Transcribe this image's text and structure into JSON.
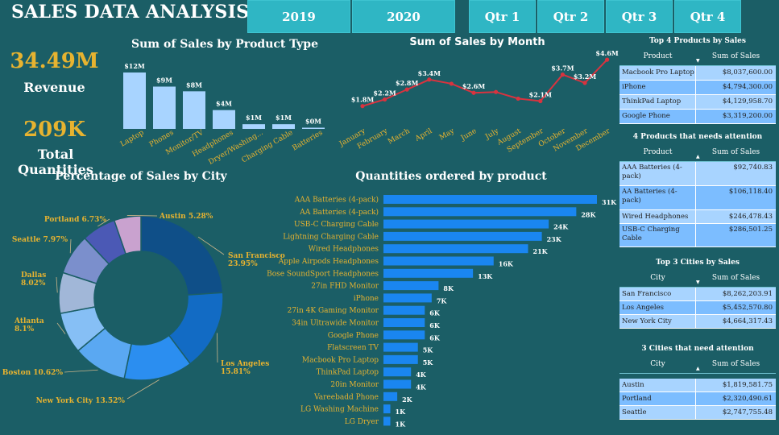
{
  "header": {
    "title": "SALES DATA ANALYSIS"
  },
  "slicers": [
    "2019",
    "2020",
    "Qtr 1",
    "Qtr 2",
    "Qtr 3",
    "Qtr 4"
  ],
  "kpis": {
    "revenue_value": "34.49M",
    "revenue_label": "Revenue",
    "quantity_value": "209K",
    "quantity_label": "Total Quantities"
  },
  "colors": {
    "background": "#1b5e66",
    "slicer": "#2fb6c4",
    "accent": "#e7b330",
    "bar_light": "#a8d4ff",
    "bar_blue": "#1a86f0",
    "line": "#d9333f"
  },
  "chart_data": [
    {
      "id": "product_type",
      "type": "bar",
      "title": "Sum of Sales by Product Type",
      "categories": [
        "Laptop",
        "Phones",
        "Monitor/TV",
        "Headphones",
        "Dryer/Washing...",
        "Charging Cable",
        "Batteries"
      ],
      "values": [
        12,
        9,
        8,
        4,
        1,
        1,
        0
      ],
      "value_labels": [
        "$12M",
        "$9M",
        "$8M",
        "$4M",
        "$1M",
        "$1M",
        "$0M"
      ],
      "ylim": [
        0,
        12
      ]
    },
    {
      "id": "sales_by_month",
      "type": "line",
      "title": "Sum of Sales by Month",
      "categories": [
        "January",
        "February",
        "March",
        "April",
        "May",
        "June",
        "July",
        "August",
        "September",
        "October",
        "November",
        "December"
      ],
      "values": [
        1.8,
        2.2,
        2.8,
        3.4,
        3.15,
        2.6,
        2.65,
        2.25,
        2.1,
        3.7,
        3.2,
        4.6
      ],
      "value_labels": [
        "$1.8M",
        "$2.2M",
        "$2.8M",
        "$3.4M",
        "",
        "$2.6M",
        "",
        "",
        "$2.1M",
        "$3.7M",
        "$3.2M",
        "$4.6M"
      ],
      "ylim": [
        1.2,
        4.8
      ]
    },
    {
      "id": "city_pie",
      "type": "pie",
      "title": "Percentage of Sales by City",
      "categories": [
        "San Francisco",
        "Los Angeles",
        "New York City",
        "Boston",
        "Atlanta",
        "Dallas",
        "Seattle",
        "Portland",
        "Austin"
      ],
      "values": [
        23.95,
        15.81,
        13.52,
        10.62,
        8.1,
        8.02,
        7.97,
        6.73,
        5.28
      ],
      "value_labels": [
        "23.95%",
        "15.81%",
        "13.52%",
        "10.62%",
        "8.1%",
        "8.02%",
        "7.97%",
        "6.73%",
        "5.28%"
      ],
      "colors": [
        "#0f4f88",
        "#126bc4",
        "#2b8ef0",
        "#5aa8f2",
        "#86bff5",
        "#a1b7d8",
        "#7b8fcc",
        "#4b59b5",
        "#c9a2cf"
      ]
    },
    {
      "id": "qty_by_product",
      "type": "bar",
      "title": "Quantities ordered by product",
      "categories": [
        "AAA Batteries (4-pack)",
        "AA Batteries (4-pack)",
        "USB-C Charging Cable",
        "Lightning Charging Cable",
        "Wired Headphones",
        "Apple Airpods Headphones",
        "Bose SoundSport Headphones",
        "27in FHD Monitor",
        "iPhone",
        "27in 4K Gaming Monitor",
        "34in Ultrawide Monitor",
        "Google Phone",
        "Flatscreen TV",
        "Macbook Pro Laptop",
        "ThinkPad Laptop",
        "20in Monitor",
        "Vareebadd Phone",
        "LG Washing Machine",
        "LG Dryer"
      ],
      "values": [
        31,
        28,
        24,
        23,
        21,
        16,
        13,
        8,
        7,
        6,
        6,
        6,
        5,
        5,
        4,
        4,
        2,
        1,
        1
      ],
      "value_labels": [
        "31K",
        "28K",
        "24K",
        "23K",
        "21K",
        "16K",
        "13K",
        "8K",
        "7K",
        "6K",
        "6K",
        "6K",
        "5K",
        "5K",
        "4K",
        "4K",
        "2K",
        "1K",
        "1K"
      ],
      "xlim": [
        0,
        31
      ]
    }
  ],
  "tables": [
    {
      "title": "Top 4 Products by Sales",
      "headers": [
        "Product",
        "Sum of Sales"
      ],
      "rows": [
        [
          "Macbook Pro Laptop",
          "$8,037,600.00"
        ],
        [
          "iPhone",
          "$4,794,300.00"
        ],
        [
          "ThinkPad Laptop",
          "$4,129,958.70"
        ],
        [
          "Google Phone",
          "$3,319,200.00"
        ]
      ]
    },
    {
      "title": "4 Products that needs attention",
      "headers": [
        "Product",
        "Sum of Sales"
      ],
      "rows": [
        [
          "AAA Batteries (4-pack)",
          "$92,740.83"
        ],
        [
          "AA Batteries (4-pack)",
          "$106,118.40"
        ],
        [
          "Wired Headphones",
          "$246,478.43"
        ],
        [
          "USB-C Charging Cable",
          "$286,501.25"
        ]
      ]
    },
    {
      "title": "Top 3 Cities by Sales",
      "headers": [
        "City",
        "Sum of Sales"
      ],
      "rows": [
        [
          "San Francisco",
          "$8,262,203.91"
        ],
        [
          "Los Angeles",
          "$5,452,570.80"
        ],
        [
          "New York City",
          "$4,664,317.43"
        ]
      ]
    },
    {
      "title": "3 Cities that need attention",
      "headers": [
        "City",
        "Sum of Sales"
      ],
      "rows": [
        [
          "Austin",
          "$1,819,581.75"
        ],
        [
          "Portland",
          "$2,320,490.61"
        ],
        [
          "Seattle",
          "$2,747,755.48"
        ]
      ]
    }
  ]
}
